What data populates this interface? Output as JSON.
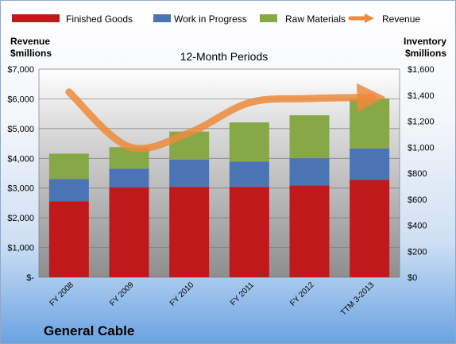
{
  "chart_data": {
    "type": "bar",
    "stacked": true,
    "title": "12-Month Periods",
    "company": "General Cable",
    "left_axis_label": [
      "Revenue",
      "$millions"
    ],
    "right_axis_label": [
      "Inventory",
      "$millions"
    ],
    "categories": [
      "FY 2008",
      "FY 2009",
      "FY 2010",
      "FY 2011",
      "FY 2012",
      "TTM 3-2013"
    ],
    "series": [
      {
        "name": "Finished Goods",
        "color": "#c0191c",
        "axis": "right",
        "values": [
          585,
          690,
          695,
          695,
          705,
          750
        ]
      },
      {
        "name": "Work in Progress",
        "color": "#4a74b4",
        "axis": "right",
        "values": [
          170,
          145,
          210,
          195,
          210,
          240
        ]
      },
      {
        "name": "Raw Materials",
        "color": "#86a846",
        "axis": "right",
        "values": [
          195,
          165,
          215,
          300,
          330,
          385
        ]
      }
    ],
    "line_series": {
      "name": "Revenue",
      "color": "#ef8a3c",
      "axis": "left",
      "values": [
        6230,
        4390,
        4860,
        5870,
        6010,
        6050
      ]
    },
    "left_axis": {
      "min": 0,
      "max": 7000,
      "step": 1000,
      "ticks": [
        "$-",
        "$1,000",
        "$2,000",
        "$3,000",
        "$4,000",
        "$5,000",
        "$6,000",
        "$7,000"
      ]
    },
    "right_axis": {
      "min": 0,
      "max": 1600,
      "step": 200,
      "ticks": [
        "$0",
        "$200",
        "$400",
        "$600",
        "$800",
        "$1,000",
        "$1,200",
        "$1,400",
        "$1,600"
      ]
    },
    "grid": true,
    "legend_position": "top"
  }
}
